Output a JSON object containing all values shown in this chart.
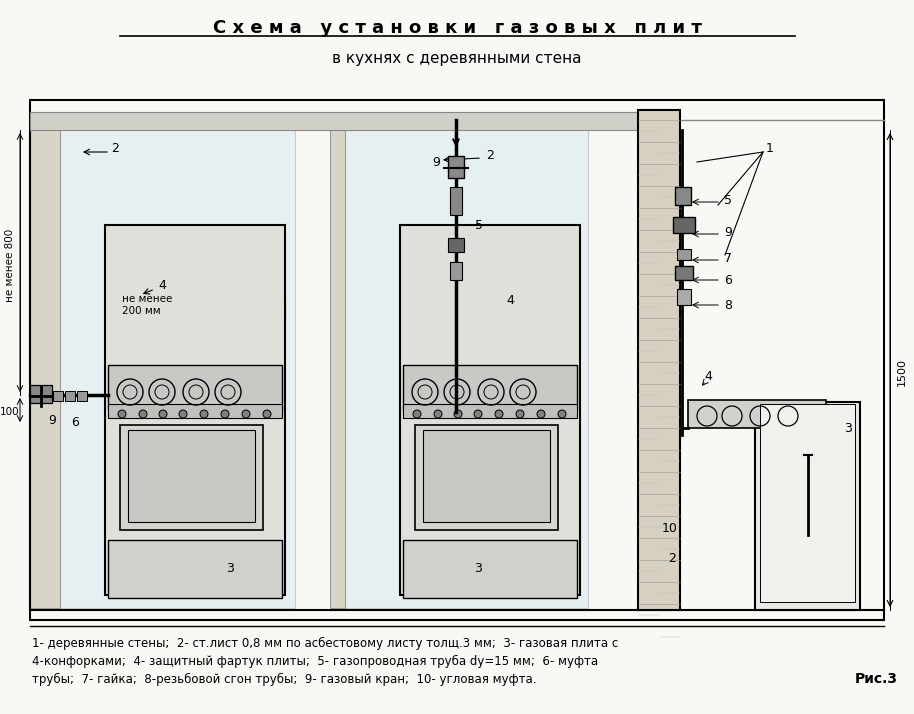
{
  "title_line1": "С х е м а   у с т а н о в к и   г а з о в ы х   п л и т",
  "title_line2": "в кухнях с деревянными стена",
  "caption_line1": "1- деревянные стены;  2- ст.лист 0,8 мм по асбестовому листу толщ.3 мм;  3- газовая плита с",
  "caption_line2": "4-конфорками;  4- защитный фартук плиты;  5- газопроводная труба dy=15 мм;  6- муфта",
  "caption_line3": "трубы;  7- гайка;  8-резьбовой сгон трубы;  9- газовый кран;  10- угловая муфта.",
  "fig_label": "Рис.3",
  "bg_color": "#f5f5f0",
  "wall_hatch_color": "#888888",
  "stove_color": "#e8e8e8",
  "panel_color": "#d8e8f0",
  "dim_color": "#333333"
}
